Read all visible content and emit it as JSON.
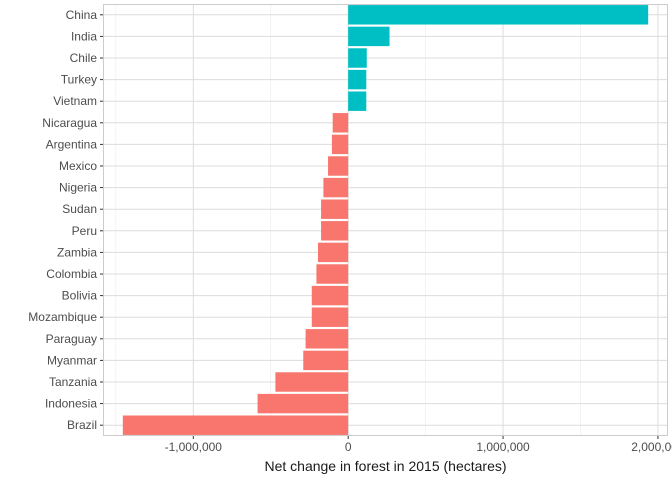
{
  "chart_data": {
    "type": "bar",
    "orientation": "horizontal",
    "categories": [
      "China",
      "India",
      "Chile",
      "Turkey",
      "Vietnam",
      "Nicaragua",
      "Argentina",
      "Mexico",
      "Nigeria",
      "Sudan",
      "Peru",
      "Zambia",
      "Colombia",
      "Bolivia",
      "Mozambique",
      "Paraguay",
      "Myanmar",
      "Tanzania",
      "Indonesia",
      "Brazil"
    ],
    "values": [
      1937000,
      267000,
      120000,
      117000,
      117000,
      -100000,
      -105000,
      -130000,
      -160000,
      -175000,
      -175000,
      -195000,
      -205000,
      -235000,
      -235000,
      -275000,
      -290000,
      -470000,
      -585000,
      -1455000
    ],
    "colors": {
      "positive": "#00BFC4",
      "negative": "#F8766D"
    },
    "xlabel": "Net change in forest in 2015 (hectares)",
    "ylabel": "",
    "xlim": [
      -1583000,
      2065000
    ],
    "xticks": [
      -1000000,
      0,
      1000000,
      2000000
    ],
    "xtick_labels": [
      "-1,000,000",
      "0",
      "1,000,000",
      "2,000,000"
    ],
    "grid": true,
    "legend": "none"
  }
}
